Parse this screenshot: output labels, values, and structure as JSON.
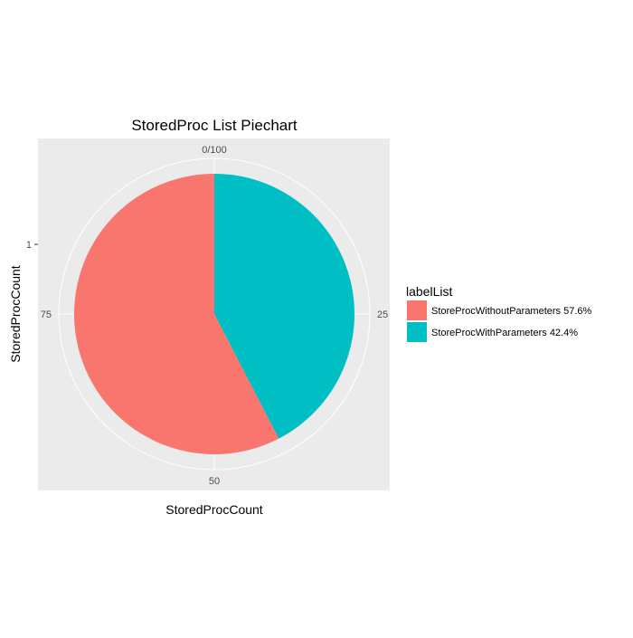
{
  "chart_data": {
    "type": "pie",
    "title": "StoredProc List Piechart",
    "xlabel": "StoredProcCount",
    "ylabel": "StoredProcCount",
    "y_tick": "1",
    "angle_ticks": [
      {
        "label": "0/100",
        "value": 0
      },
      {
        "label": "25",
        "value": 25
      },
      {
        "label": "50",
        "value": 50
      },
      {
        "label": "75",
        "value": 75
      }
    ],
    "angle_range": [
      0,
      100
    ],
    "legend_title": "labelList",
    "legend_position": "right",
    "grid": true,
    "colors": {
      "panel": "#EBEBEB",
      "grid": "#FFFFFF",
      "axis_text": "#4D4D4D",
      "text": "#000000"
    },
    "slices": [
      {
        "label": "StoreProcWithoutParameters 57.6%",
        "value": 57.6,
        "color": "#F8766D"
      },
      {
        "label": "StoreProcWithParameters 42.4%",
        "value": 42.4,
        "color": "#00BFC4"
      }
    ]
  }
}
